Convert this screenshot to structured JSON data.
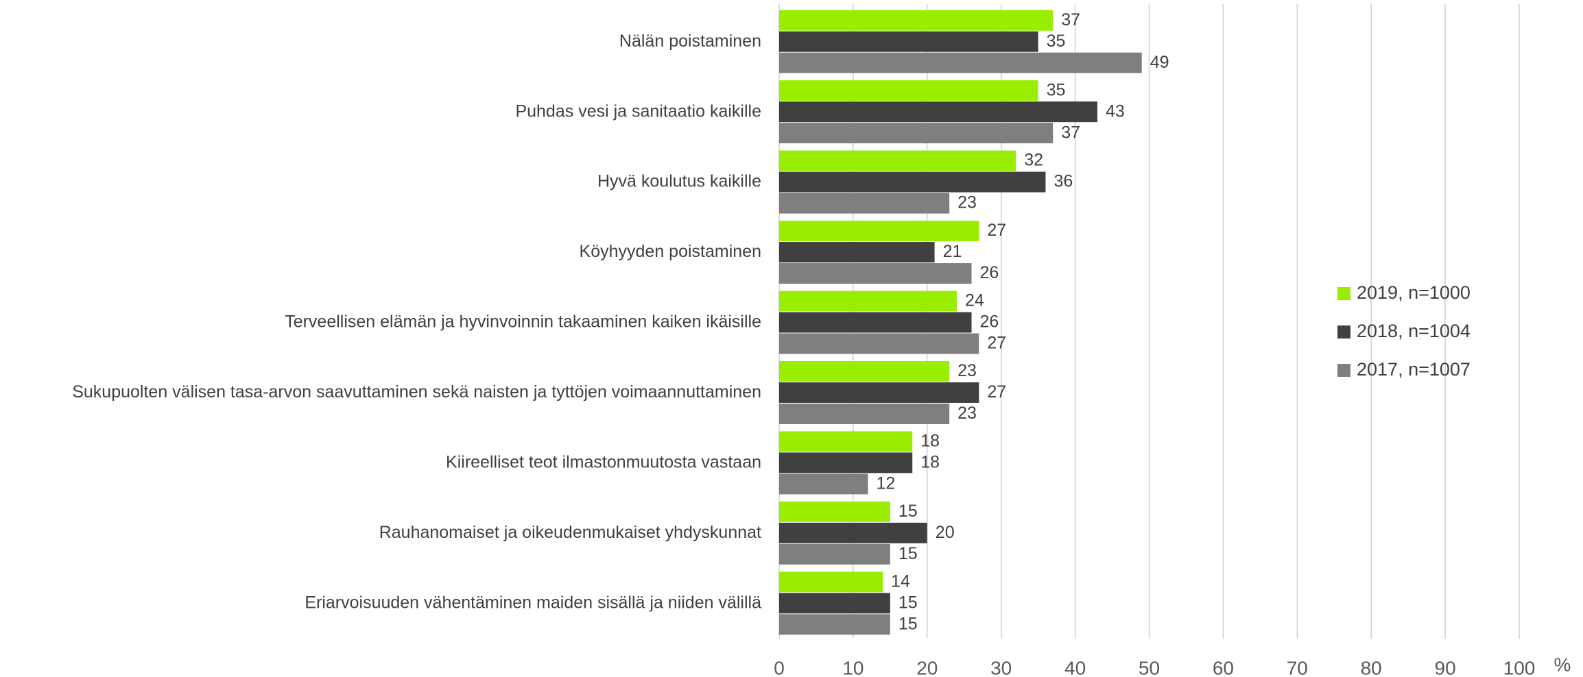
{
  "chart_data": {
    "type": "barh",
    "categories": [
      "Nälän poistaminen",
      "Puhdas vesi ja sanitaatio kaikille",
      "Hyvä koulutus kaikille",
      "Köyhyyden poistaminen",
      "Terveellisen elämän ja hyvinvoinnin takaaminen kaiken ikäisille",
      "Sukupuolten välisen tasa-arvon saavuttaminen sekä naisten ja tyttöjen voimaannuttaminen",
      "Kiireelliset teot ilmastonmuutosta vastaan",
      "Rauhanomaiset ja oikeudenmukaiset yhdyskunnat",
      "Eriarvoisuuden vähentäminen maiden sisällä ja niiden välillä"
    ],
    "series": [
      {
        "name": "2019, n=1000",
        "color": "#99ee00",
        "values": [
          37,
          35,
          32,
          27,
          24,
          23,
          18,
          15,
          14
        ]
      },
      {
        "name": "2018, n=1004",
        "color": "#404040",
        "values": [
          35,
          43,
          36,
          21,
          26,
          27,
          18,
          20,
          15
        ]
      },
      {
        "name": "2017, n=1007",
        "color": "#7f7f7f",
        "values": [
          49,
          37,
          23,
          26,
          27,
          23,
          12,
          15,
          15
        ]
      }
    ],
    "xlabel": "%",
    "xlim": [
      0,
      100
    ],
    "xticks": [
      0,
      10,
      20,
      30,
      40,
      50,
      60,
      70,
      80,
      90,
      100
    ],
    "grid": true,
    "legend": "right"
  }
}
